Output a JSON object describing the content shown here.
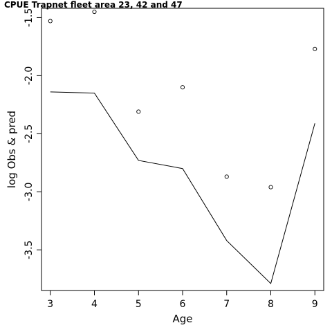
{
  "chart_data": {
    "type": "line",
    "title": "CPUE Trapnet fleet area 23, 42 and 47",
    "xlabel": "Age",
    "ylabel": "log Obs & pred",
    "xlim": [
      2.8,
      9.2
    ],
    "ylim": [
      -3.85,
      -1.42
    ],
    "x_ticks": [
      3,
      4,
      5,
      6,
      7,
      8,
      9
    ],
    "x_tick_labels": [
      "3",
      "4",
      "5",
      "6",
      "7",
      "8",
      "9"
    ],
    "y_ticks": [
      -3.5,
      -3.0,
      -2.5,
      -2.0,
      -1.5
    ],
    "y_tick_labels": [
      "-3.5",
      "-3.0",
      "-2.5",
      "-2.0",
      "-1.5"
    ],
    "grid": false,
    "series": [
      {
        "kind": "points",
        "x": [
          3,
          4,
          5,
          6,
          7,
          8,
          9
        ],
        "y": [
          -1.53,
          -1.45,
          -2.31,
          -2.1,
          -2.87,
          -2.96,
          -1.77
        ]
      },
      {
        "kind": "line",
        "x": [
          3,
          4,
          5,
          6,
          7,
          8,
          9
        ],
        "y": [
          -2.14,
          -2.15,
          -2.73,
          -2.8,
          -3.42,
          -3.79,
          -2.41
        ]
      }
    ]
  }
}
